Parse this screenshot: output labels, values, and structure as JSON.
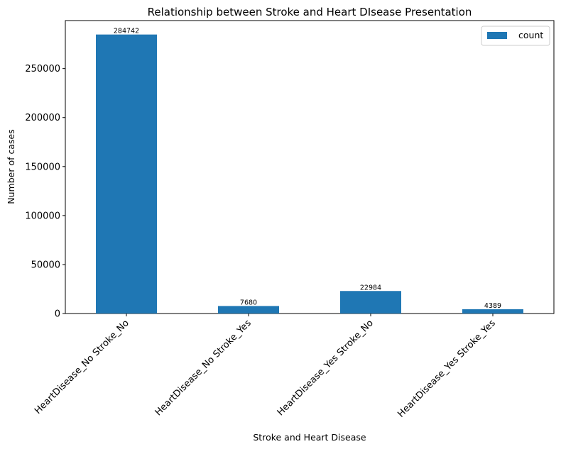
{
  "chart_data": {
    "type": "bar",
    "title": "Relationship between Stroke and Heart DIsease Presentation",
    "xlabel": "Stroke and Heart Disease",
    "ylabel": "Number of cases",
    "categories": [
      "HeartDisease_No Stroke_No",
      "HeartDisease_No Stroke_Yes",
      "HeartDisease_Yes Stroke_No",
      "HeartDisease_Yes Stroke_Yes"
    ],
    "series": [
      {
        "name": "count",
        "values": [
          284742,
          7680,
          22984,
          4389
        ],
        "color": "#1f77b4"
      }
    ],
    "data_labels": [
      "284742",
      "7680",
      "22984",
      "4389"
    ],
    "ylim": [
      0,
      298973
    ],
    "yticks": [
      0,
      50000,
      100000,
      150000,
      200000,
      250000
    ],
    "ytick_labels": [
      "0",
      "50000",
      "100000",
      "150000",
      "200000",
      "250000"
    ],
    "legend_position": "top-right",
    "grid": false
  }
}
